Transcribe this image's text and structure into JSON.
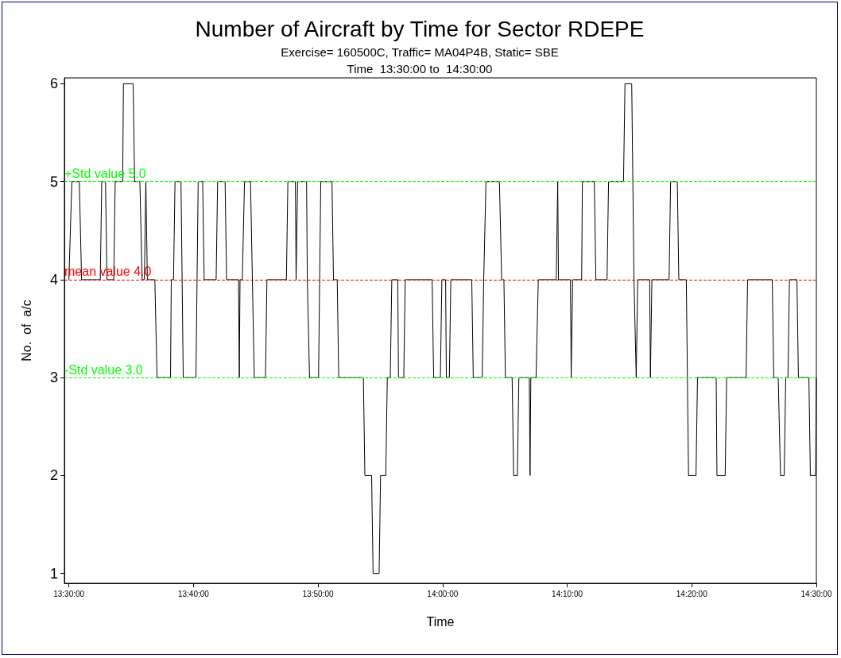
{
  "chart_data": {
    "type": "line",
    "title": "Number of Aircraft by Time for Sector RDEPE",
    "subtitle": "Exercise= 160500C, Traffic= MA04P4B, Static= SBE\nTime  13:30:00 to  14:30:00",
    "xlabel": "Time",
    "ylabel": "No.  of  a/c",
    "x": [
      13.5,
      13.504,
      13.514,
      13.517,
      13.542,
      13.544,
      13.549,
      13.551,
      13.56,
      13.562,
      13.572,
      13.573,
      13.586,
      13.588,
      13.595,
      13.598,
      13.601,
      13.603,
      13.605,
      13.615,
      13.618,
      13.636,
      13.637,
      13.64,
      13.642,
      13.65,
      13.653,
      13.67,
      13.673,
      13.679,
      13.681,
      13.697,
      13.699,
      13.709,
      13.711,
      13.727,
      13.728,
      13.729,
      13.732,
      13.735,
      13.743,
      13.748,
      13.763,
      13.765,
      13.791,
      13.793,
      13.803,
      13.804,
      13.806,
      13.818,
      13.819,
      13.822,
      13.834,
      13.837,
      13.852,
      13.854,
      13.859,
      13.861,
      13.894,
      13.896,
      13.905,
      13.907,
      13.915,
      13.917,
      13.924,
      13.926,
      13.93,
      13.932,
      13.94,
      13.941,
      13.948,
      13.95,
      13.986,
      13.988,
      13.997,
      13.999,
      14.004,
      14.005,
      14.009,
      14.011,
      14.039,
      14.041,
      14.053,
      14.055,
      14.058,
      14.076,
      14.079,
      14.082,
      14.084,
      14.093,
      14.095,
      14.1,
      14.102,
      14.116,
      14.117,
      14.118,
      14.125,
      14.128,
      14.152,
      14.154,
      14.155,
      14.171,
      14.172,
      14.174,
      14.186,
      14.187,
      14.203,
      14.205,
      14.22,
      14.222,
      14.242,
      14.244,
      14.253,
      14.256,
      14.259,
      14.261,
      14.277,
      14.278,
      14.28,
      14.303,
      14.305,
      14.314,
      14.316,
      14.326,
      14.329,
      14.339,
      14.341,
      14.366,
      14.367,
      14.378,
      14.38,
      14.406,
      14.408,
      14.441,
      14.443,
      14.449,
      14.452,
      14.457,
      14.459,
      14.462,
      14.464,
      14.474,
      14.476,
      14.49,
      14.492,
      14.499,
      14.5
    ],
    "series": [
      {
        "color": "#000000",
        "values": [
          4,
          5,
          5,
          4,
          4,
          5,
          5,
          4,
          4,
          5,
          5,
          6,
          6,
          5,
          5,
          4,
          4,
          5,
          4,
          4,
          3,
          3,
          4,
          4,
          5,
          5,
          3,
          3,
          5,
          5,
          4,
          4,
          5,
          5,
          4,
          4,
          3,
          4,
          4,
          5,
          5,
          3,
          3,
          4,
          4,
          5,
          5,
          4,
          5,
          5,
          4,
          3,
          3,
          5,
          5,
          4,
          4,
          3,
          3,
          2,
          2,
          1,
          1,
          2,
          2,
          3,
          3,
          4,
          4,
          3,
          3,
          4,
          4,
          3,
          3,
          4,
          4,
          3,
          3,
          4,
          4,
          3,
          3,
          4,
          5,
          5,
          4,
          4,
          3,
          3,
          2,
          2,
          3,
          3,
          2,
          3,
          3,
          4,
          4,
          5,
          4,
          4,
          3,
          4,
          4,
          5,
          5,
          4,
          4,
          5,
          5,
          6,
          6,
          4,
          3,
          4,
          4,
          3,
          4,
          4,
          5,
          5,
          4,
          4,
          2,
          2,
          3,
          3,
          2,
          2,
          3,
          3,
          4,
          4,
          3,
          3,
          2,
          2,
          3,
          3,
          4,
          4,
          3,
          3,
          2,
          2,
          3
        ]
      }
    ],
    "xlim": [
      13.494,
      14.5
    ],
    "xticks": [
      {
        "value": 13.5,
        "label": "13:30:00"
      },
      {
        "value": 13.6667,
        "label": "13:40:00"
      },
      {
        "value": 13.8333,
        "label": "13:50:00"
      },
      {
        "value": 14,
        "label": "14:00:00"
      },
      {
        "value": 14.1667,
        "label": "14:10:00"
      },
      {
        "value": 14.3333,
        "label": "14:20:00"
      },
      {
        "value": 14.5,
        "label": "14:30:00"
      }
    ],
    "ylim": [
      0.9,
      6.06
    ],
    "yticks": [
      1,
      2,
      3,
      4,
      5,
      6
    ],
    "ref_lines": [
      {
        "axis": "y",
        "value": 5,
        "label": "+Std value 5.0",
        "color": "#00ff00",
        "line_style": "dashed"
      },
      {
        "axis": "y",
        "value": 4,
        "label": "mean value 4.0",
        "color": "#ff0000",
        "line_style": "dashed"
      },
      {
        "axis": "y",
        "value": 3,
        "label": "-Std value 3.0",
        "color": "#00ff00",
        "line_style": "dashed"
      }
    ],
    "grid": false,
    "marker": "none",
    "line_style": "solid"
  }
}
